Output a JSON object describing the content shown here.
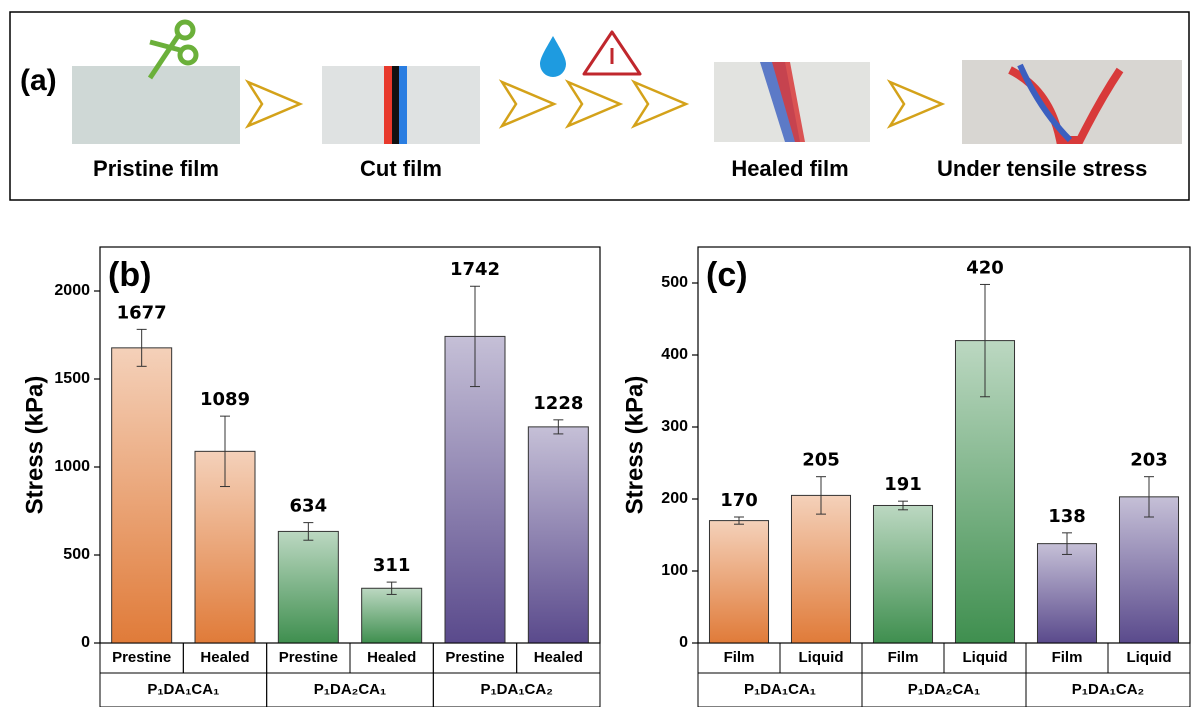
{
  "panel_a": {
    "label": "(a)",
    "steps": [
      "Pristine film",
      "Cut film",
      "Healed film",
      "Under tensile stress"
    ]
  },
  "chart_data": [
    {
      "type": "bar",
      "panel_label": "(b)",
      "ylabel": "Stress (kPa)",
      "categories": [
        "Prestine",
        "Healed",
        "Prestine",
        "Healed",
        "Prestine",
        "Healed"
      ],
      "groups": [
        "P₁DA₁CA₁",
        "P₁DA₂CA₁",
        "P₁DA₁CA₂"
      ],
      "values": [
        1677,
        1089,
        634,
        311,
        1742,
        1228
      ],
      "errors": [
        105,
        200,
        50,
        35,
        285,
        40
      ],
      "colors": [
        "#e07b39",
        "#e07b39",
        "#3f8f4f",
        "#3f8f4f",
        "#5a4a8c",
        "#5a4a8c"
      ],
      "ylim": [
        0,
        2250
      ],
      "yticks": [
        0,
        500,
        1000,
        1500,
        2000
      ]
    },
    {
      "type": "bar",
      "panel_label": "(c)",
      "ylabel": "Stress (kPa)",
      "categories": [
        "Film",
        "Liquid",
        "Film",
        "Liquid",
        "Film",
        "Liquid"
      ],
      "groups": [
        "P₁DA₁CA₁",
        "P₁DA₂CA₁",
        "P₁DA₁CA₂"
      ],
      "values": [
        170,
        205,
        191,
        420,
        138,
        203
      ],
      "errors": [
        5,
        26,
        6,
        78,
        15,
        28
      ],
      "colors": [
        "#e07b39",
        "#e07b39",
        "#3f8f4f",
        "#3f8f4f",
        "#5a4a8c",
        "#5a4a8c"
      ],
      "ylim": [
        0,
        550
      ],
      "yticks": [
        0,
        100,
        200,
        300,
        400,
        500
      ]
    }
  ]
}
